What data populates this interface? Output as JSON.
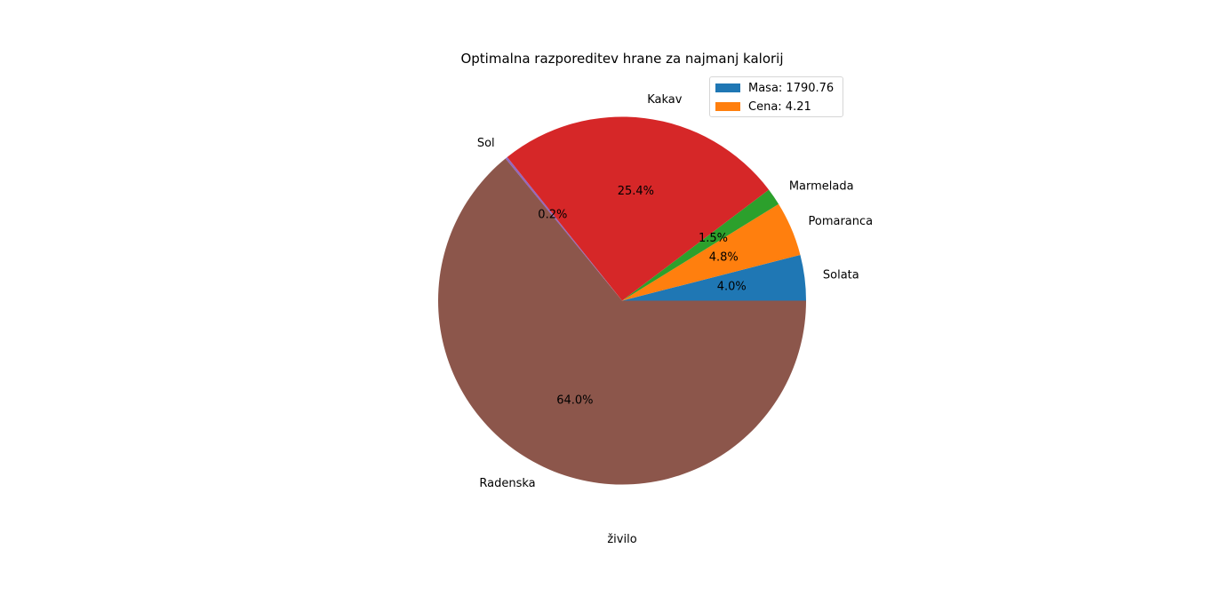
{
  "chart_data": {
    "type": "pie",
    "title": "Optimalna razporeditev hrane za najmanj kalorij",
    "xlabel": "živilo",
    "ylabel": "",
    "slices": [
      {
        "label": "Solata",
        "value": 4.0,
        "pct_label": "4.0%",
        "color": "#1f77b4"
      },
      {
        "label": "Pomaranca",
        "value": 4.8,
        "pct_label": "4.8%",
        "color": "#ff7f0e"
      },
      {
        "label": "Marmelada",
        "value": 1.5,
        "pct_label": "1.5%",
        "color": "#2ca02c"
      },
      {
        "label": "Kakav",
        "value": 25.4,
        "pct_label": "25.4%",
        "color": "#d62728"
      },
      {
        "label": "Sol",
        "value": 0.2,
        "pct_label": "0.2%",
        "color": "#9467bd"
      },
      {
        "label": "Radenska",
        "value": 64.0,
        "pct_label": "64.0%",
        "color": "#8c564b"
      }
    ],
    "start_angle_deg": 0,
    "direction": "counterclockwise",
    "legend": {
      "placement": "upper-right",
      "entries": [
        {
          "label": "Masa: 1790.76",
          "color": "#1f77b4"
        },
        {
          "label": "Cena: 4.21",
          "color": "#ff7f0e"
        }
      ]
    }
  }
}
